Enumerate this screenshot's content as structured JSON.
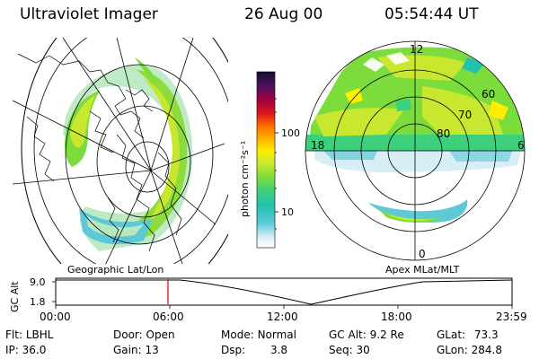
{
  "header": {
    "title": "Ultraviolet Imager",
    "date": "26 Aug 00",
    "time": "05:54:44 UT"
  },
  "left_panel": {
    "caption": "Geographic Lat/Lon"
  },
  "right_panel": {
    "caption": "Apex MLat/MLT",
    "mlt_labels": {
      "top": "12",
      "left": "18",
      "right": "6",
      "bottom": "0"
    },
    "lat_labels": [
      "60",
      "70",
      "80"
    ]
  },
  "colorbar": {
    "unit_label": "photon cm⁻²s⁻¹",
    "tick_labels": [
      "100",
      "10"
    ]
  },
  "timeline": {
    "y_label": "GC Alt",
    "y_ticks": [
      "9.0",
      "1.8"
    ],
    "x_ticks": [
      "00:00",
      "06:00",
      "12:00",
      "18:00",
      "23:59"
    ],
    "marker_time": "05:54:44"
  },
  "info": {
    "filter": {
      "label": "Flt:",
      "value": "LBHL"
    },
    "ip": {
      "label": "IP:",
      "value": "36.0"
    },
    "door": {
      "label": "Door:",
      "value": "Open"
    },
    "gain": {
      "label": "Gain:",
      "value": "13"
    },
    "mode": {
      "label": "Mode:",
      "value": "Normal"
    },
    "dsp": {
      "label": "Dsp:",
      "value": "3.8"
    },
    "gc_alt": {
      "label": "GC Alt:",
      "value": "9.2 Re"
    },
    "seq": {
      "label": "Seq:",
      "value": "30"
    },
    "glat": {
      "label": "GLat:",
      "value": "73.3"
    },
    "glon": {
      "label": "GLon:",
      "value": "284.8"
    }
  },
  "colors": {
    "marker": "#e00000"
  }
}
